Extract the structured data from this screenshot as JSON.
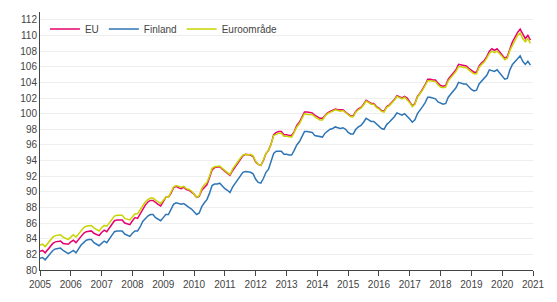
{
  "chart_data": {
    "type": "line",
    "x": [
      2005,
      2005.0833333333333,
      2005.1666666666667,
      2005.25,
      2005.3333333333333,
      2005.4166666666667,
      2005.5,
      2005.5833333333333,
      2005.6666666666667,
      2005.75,
      2005.8333333333333,
      2005.9166666666667,
      2006,
      2006.0833333333333,
      2006.1666666666667,
      2006.25,
      2006.3333333333333,
      2006.4166666666667,
      2006.5,
      2006.5833333333333,
      2006.6666666666667,
      2006.75,
      2006.8333333333333,
      2006.9166666666667,
      2007,
      2007.0833333333333,
      2007.1666666666667,
      2007.25,
      2007.3333333333333,
      2007.4166666666667,
      2007.5,
      2007.5833333333333,
      2007.6666666666667,
      2007.75,
      2007.8333333333333,
      2007.9166666666667,
      2008,
      2008.0833333333333,
      2008.1666666666667,
      2008.25,
      2008.3333333333333,
      2008.4166666666667,
      2008.5,
      2008.5833333333333,
      2008.6666666666667,
      2008.75,
      2008.8333333333333,
      2008.9166666666667,
      2009,
      2009.0833333333333,
      2009.1666666666667,
      2009.25,
      2009.3333333333333,
      2009.4166666666667,
      2009.5,
      2009.5833333333333,
      2009.6666666666667,
      2009.75,
      2009.8333333333333,
      2009.9166666666667,
      2010,
      2010.0833333333333,
      2010.1666666666667,
      2010.25,
      2010.3333333333333,
      2010.4166666666667,
      2010.5,
      2010.5833333333333,
      2010.6666666666667,
      2010.75,
      2010.8333333333333,
      2010.9166666666667,
      2011,
      2011.0833333333333,
      2011.1666666666667,
      2011.25,
      2011.3333333333333,
      2011.4166666666667,
      2011.5,
      2011.5833333333333,
      2011.6666666666667,
      2011.75,
      2011.8333333333333,
      2011.9166666666667,
      2012,
      2012.0833333333333,
      2012.1666666666667,
      2012.25,
      2012.3333333333333,
      2012.4166666666667,
      2012.5,
      2012.5833333333333,
      2012.6666666666667,
      2012.75,
      2012.8333333333333,
      2012.9166666666667,
      2013,
      2013.0833333333333,
      2013.1666666666667,
      2013.25,
      2013.3333333333333,
      2013.4166666666667,
      2013.5,
      2013.5833333333333,
      2013.6666666666667,
      2013.75,
      2013.8333333333333,
      2013.9166666666667,
      2014,
      2014.0833333333333,
      2014.1666666666667,
      2014.25,
      2014.3333333333333,
      2014.4166666666667,
      2014.5,
      2014.5833333333333,
      2014.6666666666667,
      2014.75,
      2014.8333333333333,
      2014.9166666666667,
      2015,
      2015.0833333333333,
      2015.1666666666667,
      2015.25,
      2015.3333333333333,
      2015.4166666666667,
      2015.5,
      2015.5833333333333,
      2015.6666666666667,
      2015.75,
      2015.8333333333333,
      2015.9166666666667,
      2016,
      2016.0833333333333,
      2016.1666666666667,
      2016.25,
      2016.3333333333333,
      2016.4166666666667,
      2016.5,
      2016.5833333333333,
      2016.6666666666667,
      2016.75,
      2016.8333333333333,
      2016.9166666666667,
      2017,
      2017.0833333333333,
      2017.1666666666667,
      2017.25,
      2017.3333333333333,
      2017.4166666666667,
      2017.5,
      2017.5833333333333,
      2017.6666666666667,
      2017.75,
      2017.8333333333333,
      2017.9166666666667,
      2018,
      2018.0833333333333,
      2018.1666666666667,
      2018.25,
      2018.3333333333333,
      2018.4166666666667,
      2018.5,
      2018.5833333333333,
      2018.6666666666667,
      2018.75,
      2018.8333333333333,
      2018.9166666666667,
      2019,
      2019.0833333333333,
      2019.1666666666667,
      2019.25,
      2019.3333333333333,
      2019.4166666666667,
      2019.5,
      2019.5833333333333,
      2019.6666666666667,
      2019.75,
      2019.8333333333333,
      2019.9166666666667,
      2020,
      2020.0833333333333,
      2020.1666666666667,
      2020.25,
      2020.3333333333333,
      2020.4166666666667,
      2020.5,
      2020.5833333333333,
      2020.6666666666667,
      2020.75,
      2020.8333333333333,
      2020.9166666666667
    ],
    "series": [
      {
        "name": "EU",
        "color": "#e8006e",
        "values": [
          82.4,
          82.5,
          82.2,
          82.6,
          83.1,
          83.4,
          83.6,
          83.7,
          83.7,
          83.4,
          83.3,
          83.3,
          83.6,
          83.8,
          83.5,
          83.9,
          84.4,
          84.7,
          84.9,
          85.0,
          85.0,
          84.7,
          84.5,
          84.4,
          84.8,
          85.1,
          84.9,
          85.4,
          85.9,
          86.3,
          86.4,
          86.4,
          86.4,
          86.0,
          85.9,
          85.8,
          86.3,
          86.7,
          86.6,
          87.2,
          87.9,
          88.3,
          88.7,
          88.9,
          88.9,
          88.6,
          88.4,
          88.2,
          88.8,
          89.3,
          89.3,
          89.8,
          90.5,
          90.7,
          90.5,
          90.4,
          90.6,
          90.3,
          90.2,
          90.0,
          89.7,
          89.3,
          89.4,
          90.2,
          90.6,
          90.9,
          91.8,
          92.8,
          93.1,
          93.2,
          93.2,
          92.9,
          92.6,
          92.4,
          92.1,
          92.7,
          93.2,
          93.7,
          94.2,
          94.6,
          94.8,
          94.7,
          94.7,
          94.5,
          93.8,
          93.5,
          93.4,
          94.0,
          94.9,
          95.3,
          96.1,
          97.3,
          97.6,
          97.7,
          97.7,
          97.3,
          97.3,
          97.2,
          97.2,
          97.7,
          98.5,
          98.9,
          99.5,
          100.2,
          100.2,
          100.1,
          100.1,
          99.8,
          99.6,
          99.4,
          99.4,
          99.8,
          100.1,
          100.3,
          100.4,
          100.6,
          100.5,
          100.5,
          100.5,
          100.2,
          99.9,
          99.7,
          99.7,
          100.3,
          100.6,
          100.8,
          101.2,
          101.7,
          101.5,
          101.3,
          101.3,
          100.9,
          100.7,
          100.4,
          100.3,
          100.9,
          101.1,
          101.4,
          101.8,
          102.3,
          102.1,
          102.0,
          102.2,
          102.0,
          101.5,
          101.0,
          101.3,
          102.2,
          102.6,
          103.1,
          103.7,
          104.4,
          104.4,
          104.3,
          104.3,
          103.9,
          103.6,
          103.5,
          103.6,
          104.4,
          104.8,
          105.2,
          105.6,
          106.3,
          106.2,
          106.1,
          106.1,
          105.8,
          105.5,
          105.3,
          105.3,
          106.1,
          106.5,
          106.8,
          107.3,
          108.0,
          108.3,
          108.1,
          108.3,
          107.9,
          107.5,
          107.1,
          107.3,
          108.4,
          109.2,
          109.8,
          110.4,
          110.8,
          110.1,
          109.6,
          110.0,
          109.4
        ]
      },
      {
        "name": "Finland",
        "color": "#2e75b6",
        "values": [
          81.5,
          81.6,
          81.3,
          81.7,
          82.2,
          82.5,
          82.7,
          82.8,
          82.8,
          82.5,
          82.3,
          82.1,
          82.3,
          82.5,
          82.2,
          82.7,
          83.2,
          83.5,
          83.8,
          83.9,
          83.9,
          83.5,
          83.3,
          83.1,
          83.4,
          83.7,
          83.5,
          84.0,
          84.5,
          84.9,
          85.0,
          85.0,
          85.0,
          84.6,
          84.4,
          84.3,
          84.7,
          85.0,
          85.0,
          85.5,
          86.2,
          86.6,
          86.9,
          87.1,
          87.1,
          86.7,
          86.5,
          86.3,
          86.7,
          87.1,
          87.1,
          87.7,
          88.4,
          88.6,
          88.5,
          88.4,
          88.5,
          88.2,
          88.0,
          87.8,
          87.5,
          87.1,
          87.3,
          88.1,
          88.6,
          89.0,
          89.8,
          90.8,
          91.0,
          91.0,
          91.1,
          90.7,
          90.4,
          90.2,
          89.9,
          90.6,
          91.1,
          91.6,
          92.1,
          92.5,
          92.6,
          92.5,
          92.5,
          92.3,
          91.6,
          91.2,
          91.1,
          91.7,
          92.5,
          92.9,
          93.8,
          94.9,
          95.2,
          95.2,
          95.2,
          94.8,
          94.8,
          94.7,
          94.7,
          95.3,
          96.0,
          96.4,
          97.0,
          97.7,
          97.7,
          97.6,
          97.6,
          97.2,
          97.1,
          97.0,
          97.0,
          97.5,
          97.8,
          98.0,
          98.1,
          98.3,
          98.2,
          98.1,
          98.2,
          98.0,
          97.6,
          97.4,
          97.4,
          98.0,
          98.3,
          98.5,
          98.9,
          99.4,
          99.2,
          99.0,
          99.0,
          98.7,
          98.4,
          98.1,
          98.0,
          98.6,
          98.9,
          99.2,
          99.6,
          100.1,
          99.9,
          99.8,
          100.0,
          99.7,
          99.3,
          98.9,
          99.2,
          100.0,
          100.4,
          100.9,
          101.4,
          102.1,
          102.1,
          102.0,
          101.9,
          101.5,
          101.3,
          101.2,
          101.3,
          102.1,
          102.5,
          102.9,
          103.3,
          104.0,
          103.9,
          103.8,
          103.8,
          103.4,
          103.1,
          102.9,
          103.0,
          103.8,
          104.2,
          104.5,
          104.9,
          105.6,
          105.5,
          105.4,
          105.6,
          105.2,
          104.8,
          104.4,
          104.5,
          105.6,
          106.3,
          106.7,
          107.1,
          107.4,
          106.7,
          106.3,
          106.7,
          106.2
        ]
      },
      {
        "name": "Euroområde",
        "color": "#c8d400",
        "values": [
          83.2,
          83.3,
          83.0,
          83.4,
          83.9,
          84.2,
          84.4,
          84.5,
          84.5,
          84.2,
          84.0,
          83.9,
          84.2,
          84.5,
          84.2,
          84.6,
          85.1,
          85.4,
          85.6,
          85.7,
          85.7,
          85.4,
          85.2,
          85.0,
          85.4,
          85.7,
          85.6,
          86.0,
          86.5,
          86.9,
          87.0,
          87.0,
          87.0,
          86.6,
          86.5,
          86.4,
          86.8,
          87.2,
          87.2,
          87.7,
          88.3,
          88.7,
          89.0,
          89.2,
          89.2,
          88.9,
          88.7,
          88.5,
          88.9,
          89.3,
          89.3,
          89.9,
          90.6,
          90.8,
          90.7,
          90.6,
          90.7,
          90.4,
          90.3,
          90.1,
          89.7,
          89.3,
          89.5,
          90.4,
          90.9,
          91.2,
          92.0,
          93.0,
          93.2,
          93.3,
          93.3,
          93.0,
          92.7,
          92.5,
          92.2,
          92.9,
          93.4,
          93.9,
          94.3,
          94.7,
          94.8,
          94.7,
          94.8,
          94.6,
          93.9,
          93.5,
          93.4,
          94.1,
          94.9,
          95.3,
          96.1,
          97.2,
          97.4,
          97.5,
          97.5,
          97.1,
          97.1,
          97.0,
          97.0,
          97.6,
          98.3,
          98.7,
          99.3,
          100.0,
          99.9,
          99.9,
          99.9,
          99.6,
          99.4,
          99.2,
          99.2,
          99.7,
          100.0,
          100.2,
          100.3,
          100.5,
          100.4,
          100.3,
          100.4,
          100.1,
          99.8,
          99.6,
          99.6,
          100.2,
          100.5,
          100.7,
          101.1,
          101.6,
          101.4,
          101.2,
          101.2,
          100.8,
          100.6,
          100.3,
          100.2,
          100.8,
          101.0,
          101.3,
          101.7,
          102.2,
          102.0,
          101.9,
          102.1,
          101.8,
          101.4,
          100.9,
          101.2,
          102.1,
          102.5,
          103.0,
          103.6,
          104.2,
          104.2,
          104.1,
          104.1,
          103.7,
          103.4,
          103.3,
          103.4,
          104.2,
          104.6,
          105.0,
          105.4,
          106.0,
          106.0,
          105.9,
          105.9,
          105.6,
          105.3,
          105.1,
          105.1,
          105.9,
          106.3,
          106.6,
          107.1,
          107.7,
          108.0,
          107.8,
          108.0,
          107.7,
          107.3,
          106.9,
          107.1,
          108.1,
          108.8,
          109.4,
          110.0,
          110.3,
          109.6,
          109.2,
          109.6,
          109.0
        ]
      }
    ],
    "xlim": [
      2005,
      2021
    ],
    "xticks": [
      2005,
      2006,
      2007,
      2008,
      2009,
      2010,
      2011,
      2012,
      2013,
      2014,
      2015,
      2016,
      2017,
      2018,
      2019,
      2020,
      2021
    ],
    "ylim": [
      80,
      113
    ],
    "yticks": [
      80,
      82,
      84,
      86,
      88,
      90,
      92,
      94,
      96,
      98,
      100,
      102,
      104,
      106,
      108,
      110,
      112
    ],
    "grid": true,
    "legend": "upper left"
  }
}
